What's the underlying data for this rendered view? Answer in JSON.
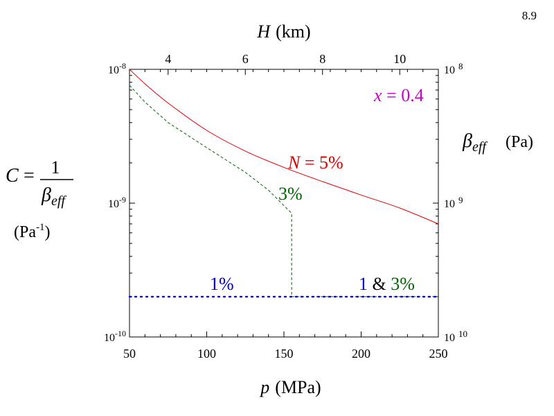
{
  "page_number": "8.9",
  "chart_data": {
    "type": "line",
    "x_scale": "linear",
    "y_scale": "log",
    "xlim": [
      50,
      250
    ],
    "ylim": [
      1e-10,
      1e-08
    ],
    "x_ticks": [
      50,
      100,
      150,
      200,
      250
    ],
    "x_tick_labels": [
      "50",
      "100",
      "150",
      "200",
      "250"
    ],
    "top_axis": {
      "label_var": "H",
      "label_unit": "(km)",
      "ticks_at_p": [
        75,
        125,
        175,
        225
      ],
      "tick_labels": [
        "4",
        "6",
        "8",
        "10"
      ]
    },
    "y_left": {
      "ticks": [
        1e-10,
        1e-09,
        1e-08
      ],
      "tick_base": "10",
      "tick_exponents": [
        "-10",
        "-9",
        "-8"
      ],
      "label_lhs": "C",
      "label_eq": "=",
      "label_num": "1",
      "label_den_main": "β",
      "label_den_sub": "eff",
      "label_unit_pre": "(Pa",
      "label_unit_exp": "-1",
      "label_unit_post": ")"
    },
    "y_right": {
      "tick_base": "10",
      "tick_exponents": [
        "10",
        "9",
        "8"
      ],
      "label_main": "β",
      "label_sub": "eff",
      "label_unit": "(Pa)"
    },
    "x_label_var": "p",
    "x_label_unit": "(MPa)",
    "series": [
      {
        "name": "N = 5%",
        "color": "#dd0000",
        "style": "solid",
        "points": [
          [
            50,
            1e-08
          ],
          [
            60,
            7.8e-09
          ],
          [
            75,
            5.6e-09
          ],
          [
            100,
            3.5e-09
          ],
          [
            125,
            2.45e-09
          ],
          [
            150,
            1.85e-09
          ],
          [
            175,
            1.45e-09
          ],
          [
            200,
            1.15e-09
          ],
          [
            225,
            9.2e-10
          ],
          [
            250,
            7e-10
          ]
        ]
      },
      {
        "name": "3%",
        "color": "#006600",
        "style": "dashed",
        "points": [
          [
            50,
            7.6e-09
          ],
          [
            60,
            5.7e-09
          ],
          [
            75,
            4e-09
          ],
          [
            100,
            2.6e-09
          ],
          [
            125,
            1.7e-09
          ],
          [
            140,
            1.25e-09
          ],
          [
            155,
            8.4e-10
          ],
          [
            155,
            2e-10
          ],
          [
            250,
            2e-10
          ]
        ]
      },
      {
        "name": "1%",
        "color": "#0000dd",
        "style": "dotted",
        "points": [
          [
            50,
            2e-10
          ],
          [
            250,
            2e-10
          ]
        ]
      }
    ],
    "annotations": {
      "x_eq": {
        "var": "x",
        "rest": " = 0.4",
        "color": "#cc00cc"
      },
      "n_5": {
        "var": "N",
        "rest": " = 5%",
        "color": "#dd0000"
      },
      "three": {
        "text": "3%",
        "color": "#006600"
      },
      "one": {
        "text": "1%",
        "color": "#0000dd"
      },
      "one_and_three": {
        "one": "1",
        "amp": " & ",
        "three": "3%",
        "one_color": "#0000dd",
        "three_color": "#006600"
      }
    }
  }
}
